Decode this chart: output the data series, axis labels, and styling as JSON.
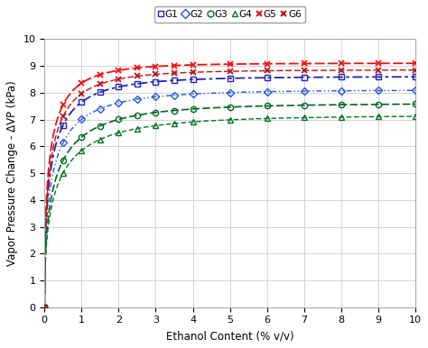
{
  "xlabel": "Ethanol Content (% v/v)",
  "ylabel": "Vapor Pressure Change - ΔVP (kPa)",
  "xlim": [
    0,
    10
  ],
  "ylim": [
    0,
    10
  ],
  "xticks": [
    0,
    1,
    2,
    3,
    4,
    5,
    6,
    7,
    8,
    9,
    10
  ],
  "yticks": [
    0,
    1,
    2,
    3,
    4,
    5,
    6,
    7,
    8,
    9,
    10
  ],
  "series": [
    {
      "label": "G1",
      "color": "#2222bb",
      "marker": "s",
      "linestyle": "-.",
      "lw": 1.3,
      "saturation": 8.6,
      "rate": 2.2
    },
    {
      "label": "G2",
      "color": "#2255dd",
      "marker": "D",
      "linestyle": "-.",
      "lw": 1.0,
      "saturation": 8.1,
      "rate": 2.0
    },
    {
      "label": "G3",
      "color": "#006622",
      "marker": "o",
      "linestyle": "--",
      "lw": 1.2,
      "saturation": 7.6,
      "rate": 1.8
    },
    {
      "label": "G4",
      "color": "#007722",
      "marker": "^",
      "linestyle": "--",
      "lw": 1.0,
      "saturation": 7.15,
      "rate": 1.7
    },
    {
      "label": "G5",
      "color": "#ee1111",
      "marker": "x",
      "linestyle": "--",
      "lw": 1.3,
      "saturation": 9.1,
      "rate": 2.5
    },
    {
      "label": "G6",
      "color": "#bb1111",
      "marker": "x",
      "linestyle": "--",
      "lw": 1.0,
      "saturation": 8.85,
      "rate": 2.3
    }
  ],
  "data_x": [
    0.0,
    0.5,
    1.0,
    1.5,
    2.0,
    2.5,
    3.0,
    3.5,
    4.0,
    5.0,
    6.0,
    7.0,
    8.0,
    9.0,
    10.0
  ],
  "background_color": "#ffffff",
  "grid_color": "#cccccc"
}
